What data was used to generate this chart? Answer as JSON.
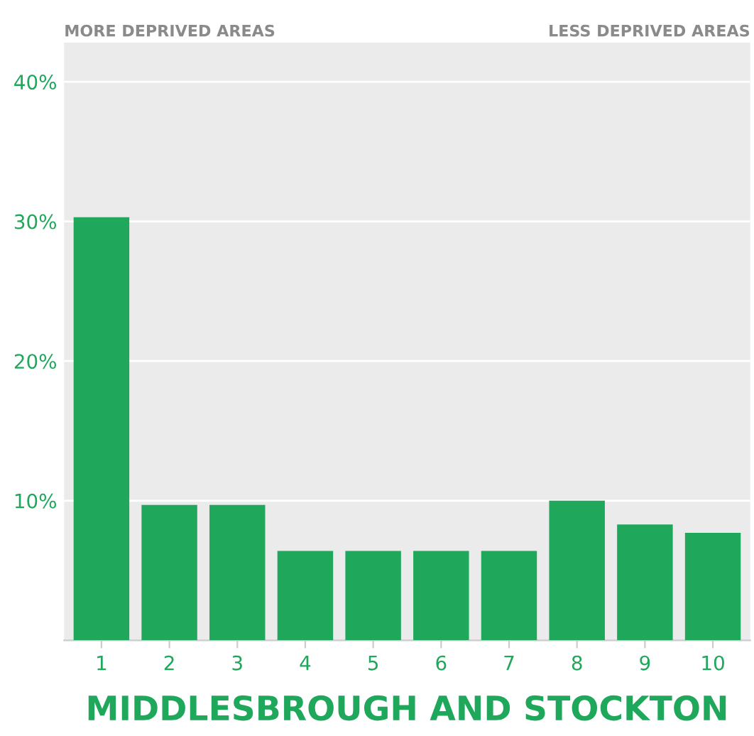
{
  "chart_data": {
    "type": "bar",
    "title": "MIDDLESBROUGH AND STOCKTON",
    "categories": [
      "1",
      "2",
      "3",
      "4",
      "5",
      "6",
      "7",
      "8",
      "9",
      "10"
    ],
    "values": [
      30.3,
      9.7,
      9.7,
      6.4,
      6.4,
      6.4,
      6.4,
      10.0,
      8.3,
      7.7
    ],
    "color": "#1fa85c",
    "ylim": [
      0,
      42.8
    ],
    "yticks": [
      {
        "value": 10,
        "label": "10%"
      },
      {
        "value": 20,
        "label": "20%"
      },
      {
        "value": 30,
        "label": "30%"
      },
      {
        "value": 40,
        "label": "40%"
      }
    ],
    "grid": "y",
    "annotations": [
      "MORE DEPRIVED AREAS",
      "LESS DEPRIVED AREAS"
    ]
  }
}
